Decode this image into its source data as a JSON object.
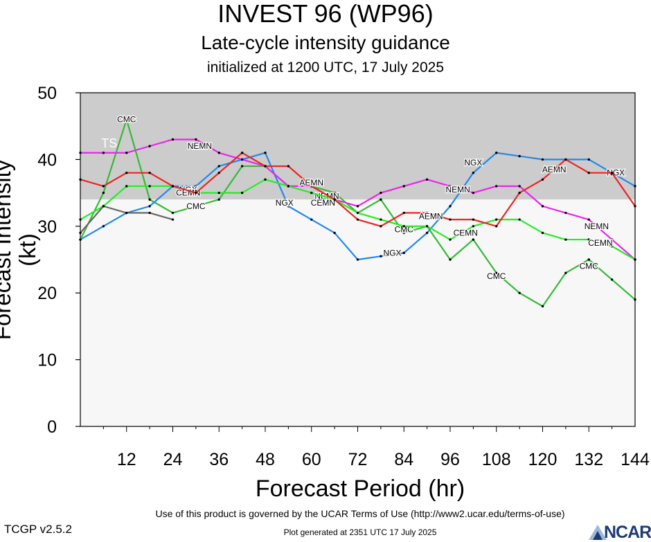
{
  "header": {
    "title": "INVEST 96 (WP96)",
    "subtitle": "Late-cycle intensity guidance",
    "init": "initialized at 1200 UTC, 17 July 2025"
  },
  "footer": {
    "terms": "Use of this product is governed by the UCAR Terms of Use (http://www2.ucar.edu/terms-of-use)",
    "version": "TCGP v2.5.2",
    "generated": "Plot generated at 2351 UTC   17 July 2025",
    "logo_text": "NCAR"
  },
  "chart_data": {
    "type": "line",
    "xlabel": "Forecast Period (hr)",
    "ylabel": "Forecast Intensity (kt)",
    "xlim": [
      0,
      144
    ],
    "ylim": [
      0,
      50
    ],
    "xticks": [
      12,
      24,
      36,
      48,
      60,
      72,
      84,
      96,
      108,
      120,
      132,
      144
    ],
    "yticks": [
      0,
      10,
      20,
      30,
      40,
      50
    ],
    "bands": [
      {
        "label": "TS",
        "from": 34,
        "to": 50,
        "color": "#cccccc"
      },
      {
        "label": "",
        "from": 0,
        "to": 34,
        "color": "#f7f7f7"
      }
    ],
    "series": [
      {
        "name": "CMC",
        "color": "#33bb33",
        "x": [
          0,
          6,
          12,
          18,
          24,
          30,
          36,
          42,
          48,
          54,
          60,
          66,
          72,
          78,
          84,
          90,
          96,
          102,
          108,
          114,
          120,
          126,
          132,
          138,
          144
        ],
        "y": [
          28,
          35,
          46,
          34,
          32,
          33,
          34,
          39,
          39,
          36,
          36,
          35,
          32,
          34,
          29,
          30,
          25,
          28,
          23,
          20,
          18,
          23,
          25,
          22,
          19
        ],
        "labels": [
          {
            "x": 12,
            "y": 46
          },
          {
            "x": 30,
            "y": 33
          },
          {
            "x": 84,
            "y": 29.5
          },
          {
            "x": 108,
            "y": 22.5
          },
          {
            "x": 132,
            "y": 24
          }
        ]
      },
      {
        "name": "NGX",
        "color": "#2288ee",
        "x": [
          0,
          6,
          12,
          18,
          24,
          30,
          36,
          42,
          48,
          54,
          60,
          66,
          72,
          78,
          84,
          90,
          96,
          102,
          108,
          114,
          120,
          126,
          132,
          138,
          144
        ],
        "y": [
          28,
          30,
          32,
          33,
          36,
          36,
          39,
          40,
          41,
          33,
          31,
          29,
          25,
          25.5,
          26,
          29,
          33,
          38,
          41,
          40.5,
          40,
          40,
          40,
          38,
          36
        ],
        "labels": [
          {
            "x": 28,
            "y": 35.5
          },
          {
            "x": 53,
            "y": 33.5
          },
          {
            "x": 81,
            "y": 26
          },
          {
            "x": 102,
            "y": 39.5
          },
          {
            "x": 139,
            "y": 38
          }
        ]
      },
      {
        "name": "NEMN",
        "color": "#ee22ee",
        "x": [
          0,
          6,
          12,
          18,
          24,
          30,
          36,
          42,
          48,
          54,
          60,
          66,
          72,
          78,
          84,
          90,
          96,
          102,
          108,
          114,
          120,
          126,
          132,
          138,
          144
        ],
        "y": [
          41,
          41,
          41,
          42,
          43,
          43,
          41,
          40,
          39,
          36,
          36,
          34,
          33,
          35,
          36,
          37,
          36,
          35,
          36,
          36,
          33,
          32,
          31,
          28,
          25
        ],
        "labels": [
          {
            "x": 31,
            "y": 42
          },
          {
            "x": 64,
            "y": 34.5
          },
          {
            "x": 98,
            "y": 35.5
          },
          {
            "x": 134,
            "y": 30
          }
        ]
      },
      {
        "name": "CEMN",
        "color": "#22ee22",
        "x": [
          0,
          6,
          12,
          18,
          24,
          30,
          36,
          42,
          48,
          54,
          60,
          66,
          72,
          78,
          84,
          90,
          96,
          102,
          108,
          114,
          120,
          126,
          132,
          138,
          144
        ],
        "y": [
          31,
          33,
          36,
          36,
          36,
          35,
          35,
          35,
          37,
          36,
          35,
          34,
          32,
          31,
          30,
          30,
          28,
          30,
          31,
          31,
          29,
          28,
          28,
          27,
          25
        ],
        "labels": [
          {
            "x": 28,
            "y": 35
          },
          {
            "x": 63,
            "y": 33.5
          },
          {
            "x": 100,
            "y": 29
          },
          {
            "x": 135,
            "y": 27.5
          }
        ]
      },
      {
        "name": "AEMN",
        "color": "#ee2222",
        "x": [
          0,
          6,
          12,
          18,
          24,
          30,
          36,
          42,
          48,
          54,
          60,
          66,
          72,
          78,
          84,
          90,
          96,
          102,
          108,
          114,
          120,
          126,
          132,
          138,
          144
        ],
        "y": [
          37,
          36,
          38,
          38,
          36,
          35,
          38,
          41,
          39,
          39,
          36,
          34,
          31,
          30,
          32,
          32,
          31,
          31,
          30,
          35,
          37,
          40,
          38,
          38,
          33
        ],
        "labels": [
          {
            "x": 60,
            "y": 36.5
          },
          {
            "x": 91,
            "y": 31.5
          },
          {
            "x": 123,
            "y": 38.5
          }
        ]
      },
      {
        "name": "",
        "color": "#666666",
        "x": [
          0,
          6,
          12,
          18,
          24
        ],
        "y": [
          29,
          33,
          32,
          32,
          31
        ],
        "labels": []
      }
    ]
  }
}
